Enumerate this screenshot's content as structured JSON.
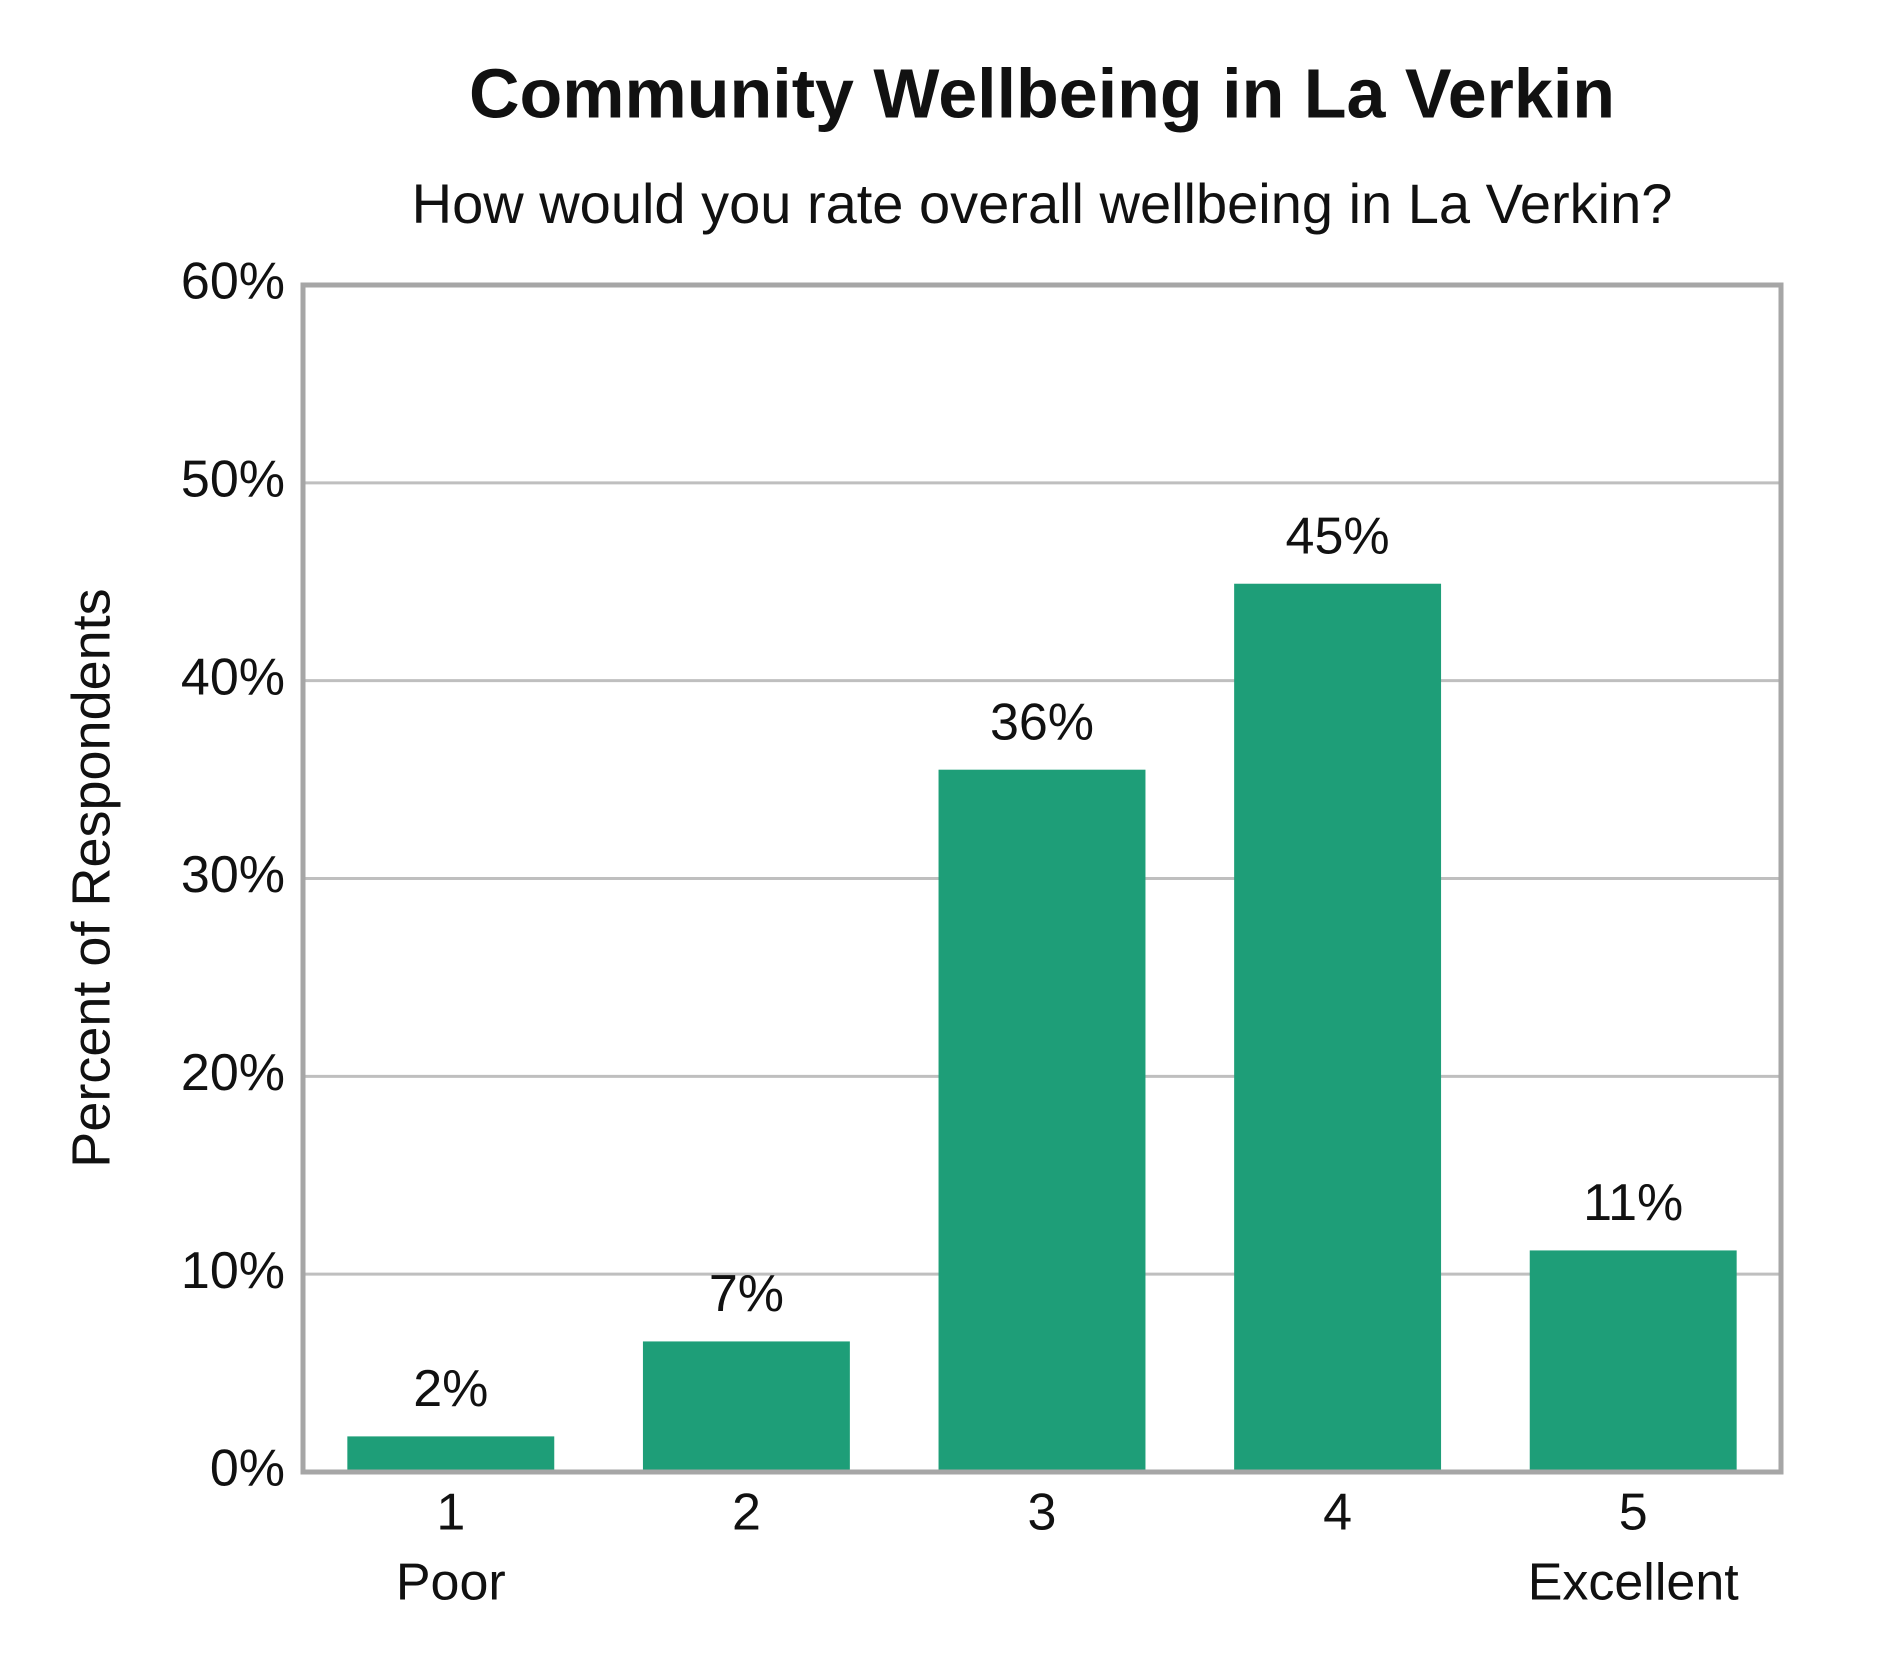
{
  "chart_data": {
    "type": "bar",
    "title": "Community Wellbeing in La Verkin",
    "subtitle": "How would you rate overall wellbeing in La Verkin?",
    "y_label": "Percent of Respondents",
    "categories": [
      "1",
      "2",
      "3",
      "4",
      "5"
    ],
    "category_sublabels": [
      "Poor",
      null,
      null,
      null,
      "Excellent"
    ],
    "values": [
      1.8,
      6.6,
      35.5,
      44.9,
      11.2
    ],
    "value_labels": [
      "2%",
      "7%",
      "36%",
      "45%",
      "11%"
    ],
    "color": "#1e9e78",
    "ylim": [
      0,
      60
    ],
    "yticks": [
      {
        "value": 0,
        "label": "0%"
      },
      {
        "value": 10,
        "label": "10%"
      },
      {
        "value": 20,
        "label": "20%"
      },
      {
        "value": 30,
        "label": "30%"
      },
      {
        "value": 40,
        "label": "40%"
      },
      {
        "value": 50,
        "label": "50%"
      },
      {
        "value": 60,
        "label": "60%"
      }
    ],
    "grid": true
  }
}
